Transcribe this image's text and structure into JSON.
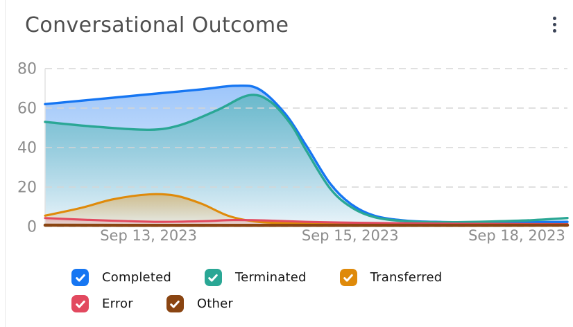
{
  "header": {
    "title": "Conversational Outcome"
  },
  "chart_data": {
    "type": "area",
    "title": "Conversational Outcome",
    "grid": "dashed-horizontal",
    "legend_position": "bottom",
    "colors": {
      "axis_text": "#8c8c8c",
      "gridline": "#d5d5d5",
      "plot_left_border": "#e2e2e2"
    },
    "y_axis": {
      "min": 0,
      "max": 80,
      "ticks": [
        0,
        20,
        40,
        60,
        80
      ]
    },
    "x_axis": {
      "ticks": [
        {
          "label": "Sep 13, 2023",
          "pos": 0.198
        },
        {
          "label": "Sep 15, 2023",
          "pos": 0.584
        },
        {
          "label": "Sep 18, 2023",
          "pos": 0.903
        }
      ]
    },
    "series": [
      {
        "name": "Completed",
        "color": "#1676f2",
        "line_width": 3.4,
        "fill_top_opacity": 0.42,
        "fill_bottom_opacity": 0.05,
        "points": [
          [
            0,
            62
          ],
          [
            0.1,
            64.5
          ],
          [
            0.2,
            67
          ],
          [
            0.3,
            69.5
          ],
          [
            0.365,
            71.3
          ],
          [
            0.41,
            69.5
          ],
          [
            0.46,
            57
          ],
          [
            0.5,
            41
          ],
          [
            0.545,
            22
          ],
          [
            0.585,
            11.5
          ],
          [
            0.63,
            5.5
          ],
          [
            0.69,
            3
          ],
          [
            0.76,
            2.3
          ],
          [
            0.87,
            2.1
          ],
          [
            1,
            2.4
          ]
        ]
      },
      {
        "name": "Terminated",
        "color": "#2aa795",
        "line_width": 3.4,
        "fill_top_opacity": 0.46,
        "fill_bottom_opacity": 0.04,
        "points": [
          [
            0,
            53
          ],
          [
            0.1,
            50.5
          ],
          [
            0.2,
            49
          ],
          [
            0.26,
            51.5
          ],
          [
            0.33,
            59
          ],
          [
            0.39,
            66.5
          ],
          [
            0.43,
            63.5
          ],
          [
            0.47,
            52
          ],
          [
            0.5,
            38.5
          ],
          [
            0.545,
            19.5
          ],
          [
            0.585,
            10
          ],
          [
            0.63,
            4.8
          ],
          [
            0.69,
            2.7
          ],
          [
            0.77,
            2.2
          ],
          [
            0.86,
            2.6
          ],
          [
            0.93,
            3.2
          ],
          [
            1,
            4.3
          ]
        ]
      },
      {
        "name": "Transferred",
        "color": "#df8a0a",
        "line_width": 3.1,
        "fill_top_opacity": 0.42,
        "fill_bottom_opacity": 0.06,
        "points": [
          [
            0,
            5.5
          ],
          [
            0.07,
            9.5
          ],
          [
            0.13,
            13.8
          ],
          [
            0.2,
            16.3
          ],
          [
            0.25,
            15.6
          ],
          [
            0.3,
            11.5
          ],
          [
            0.35,
            5.5
          ],
          [
            0.4,
            2.6
          ],
          [
            0.45,
            1.8
          ],
          [
            0.52,
            1.6
          ],
          [
            0.62,
            1.5
          ],
          [
            0.75,
            1.4
          ],
          [
            0.88,
            1.3
          ],
          [
            1,
            1.2
          ]
        ]
      },
      {
        "name": "Error",
        "color": "#e2495f",
        "line_width": 3.1,
        "fill_top_opacity": 0.3,
        "fill_bottom_opacity": 0.05,
        "points": [
          [
            0,
            4.3
          ],
          [
            0.08,
            3.4
          ],
          [
            0.15,
            2.8
          ],
          [
            0.22,
            2.4
          ],
          [
            0.3,
            2.7
          ],
          [
            0.36,
            3.3
          ],
          [
            0.42,
            3.1
          ],
          [
            0.5,
            2.4
          ],
          [
            0.6,
            1.9
          ],
          [
            0.7,
            1.6
          ],
          [
            0.8,
            1.4
          ],
          [
            0.9,
            1.3
          ],
          [
            1,
            1.2
          ]
        ]
      },
      {
        "name": "Other",
        "color": "#8a4512",
        "line_width": 4.5,
        "fill_top_opacity": 0.55,
        "fill_bottom_opacity": 0.3,
        "points": [
          [
            0,
            0.7
          ],
          [
            0.25,
            0.6
          ],
          [
            0.5,
            0.6
          ],
          [
            0.75,
            0.6
          ],
          [
            1,
            0.7
          ]
        ]
      }
    ]
  }
}
